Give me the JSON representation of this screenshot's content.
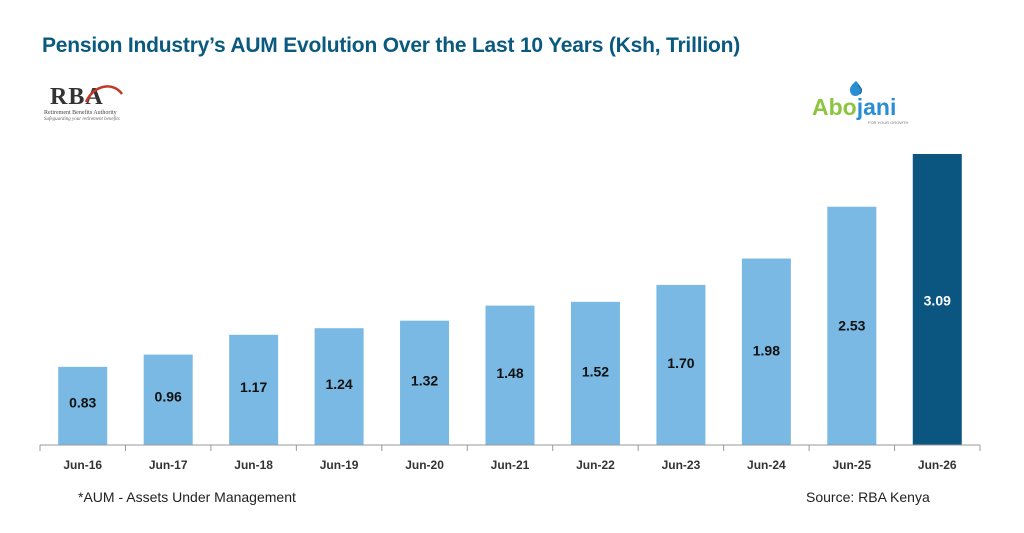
{
  "title": "Pension Industry’s AUM Evolution Over the Last 10 Years (Ksh, Trillion)",
  "logos": {
    "rba": {
      "mark": "RBA",
      "line1": "Retirement Benefits Authority",
      "line2": "Safeguarding your retirement benefits"
    },
    "abojani": {
      "part1": "Abo",
      "part2": "jani",
      "tagline": "FOR YOUR GROWTH"
    }
  },
  "footnote": "*AUM - Assets Under Management",
  "source": "Source: RBA Kenya",
  "colors": {
    "bar": "#79b9e3",
    "highlight": "#0b5581",
    "title": "#0a5a80",
    "axis": "#999999"
  },
  "chart_data": {
    "type": "bar",
    "title": "Pension Industry’s AUM Evolution Over the Last 10 Years (Ksh, Trillion)",
    "categories": [
      "Jun-16",
      "Jun-17",
      "Jun-18",
      "Jun-19",
      "Jun-20",
      "Jun-21",
      "Jun-22",
      "Jun-23",
      "Jun-24",
      "Jun-25",
      "Jun-26"
    ],
    "values": [
      0.83,
      0.96,
      1.17,
      1.24,
      1.32,
      1.48,
      1.52,
      1.7,
      1.98,
      2.53,
      3.09
    ],
    "labels": [
      "0.83",
      "0.96",
      "1.17",
      "1.24",
      "1.32",
      "1.48",
      "1.52",
      "1.70",
      "1.98",
      "2.53",
      "3.09"
    ],
    "highlight_index": 10,
    "ylim": [
      0,
      3.09
    ],
    "grid": false,
    "xlabel": "",
    "ylabel": ""
  }
}
